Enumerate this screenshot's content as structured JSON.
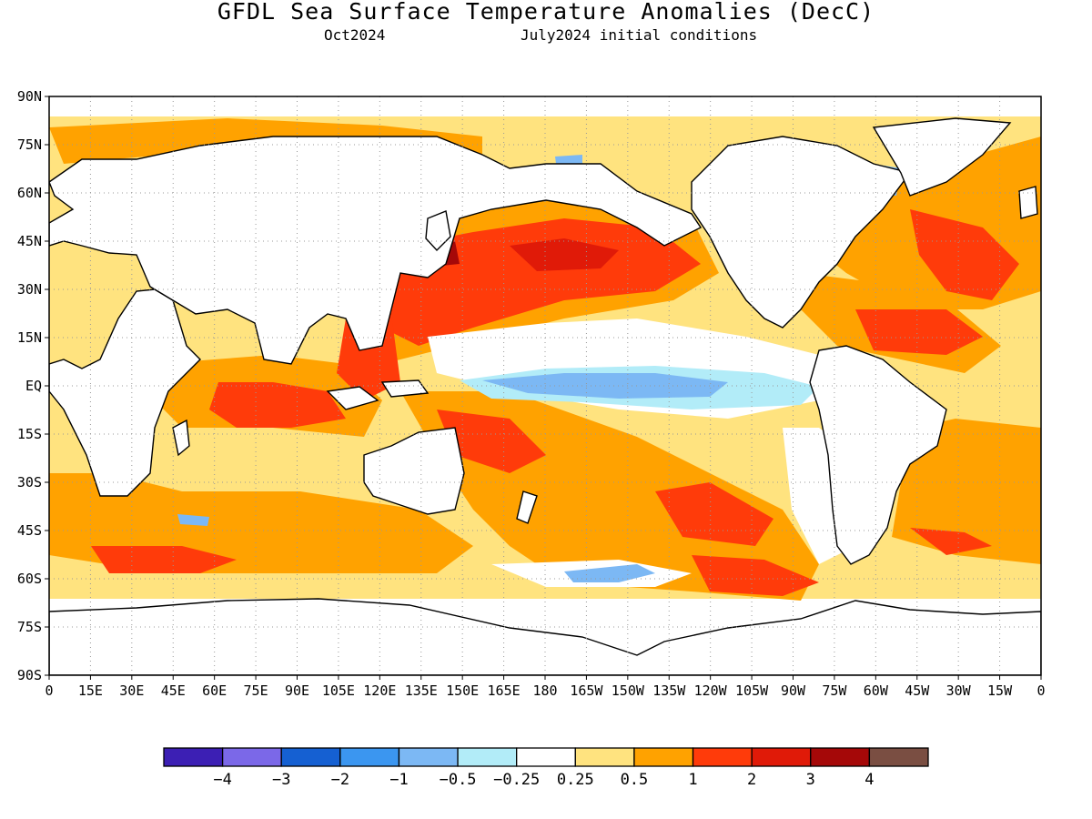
{
  "header": {
    "title": "GFDL Sea Surface Temperature Anomalies (DecC)",
    "valid_month": "Oct2024",
    "init_conditions": "July2024 initial conditions"
  },
  "map": {
    "projection": "equirectangular",
    "lon_range": [
      0,
      360
    ],
    "lat_range": [
      -90,
      90
    ],
    "grid": "dotted",
    "lat_labels": [
      "90N",
      "75N",
      "60N",
      "45N",
      "30N",
      "15N",
      "EQ",
      "15S",
      "30S",
      "45S",
      "60S",
      "75S",
      "90S"
    ],
    "lon_labels": [
      "0",
      "15E",
      "30E",
      "45E",
      "60E",
      "75E",
      "90E",
      "105E",
      "120E",
      "135E",
      "150E",
      "165E",
      "180",
      "165W",
      "150W",
      "135W",
      "120W",
      "105W",
      "90W",
      "75W",
      "60W",
      "45W",
      "30W",
      "15W",
      "0"
    ]
  },
  "legend": {
    "colors": [
      "#3c1fb4",
      "#7b68e8",
      "#1560d2",
      "#3b96f0",
      "#7cb8f4",
      "#b2ecf8",
      "#ffffff",
      "#ffe37f",
      "#ffa200",
      "#ff3b0a",
      "#e01a08",
      "#a50808",
      "#7a4e42"
    ],
    "labels": [
      "-4",
      "-3",
      "-2",
      "-1",
      "-0.5",
      "-0.25",
      "0.25",
      "0.5",
      "1",
      "2",
      "3",
      "4"
    ]
  }
}
